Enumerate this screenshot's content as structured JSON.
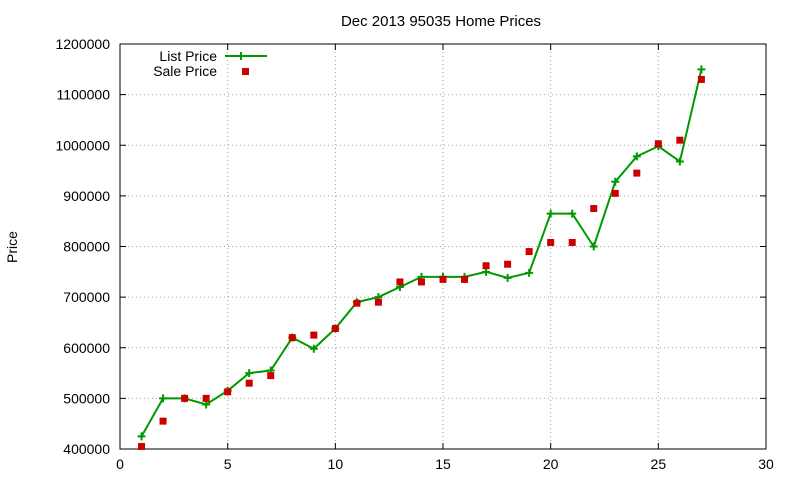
{
  "chart_data": {
    "type": "line",
    "title": "Dec 2013 95035 Home Prices",
    "xlabel": "",
    "ylabel": "Price",
    "xlim": [
      0,
      30
    ],
    "ylim": [
      400000,
      1200000
    ],
    "x_ticks": [
      0,
      5,
      10,
      15,
      20,
      25,
      30
    ],
    "x_tick_labels": [
      "0",
      "5",
      "10",
      "15",
      "20",
      "25",
      "30"
    ],
    "y_ticks": [
      400000,
      500000,
      600000,
      700000,
      800000,
      900000,
      1000000,
      1100000,
      1200000
    ],
    "y_tick_labels": [
      "400000",
      "500000",
      "600000",
      "700000",
      "800000",
      "900000",
      "1000000",
      "1100000",
      "1200000"
    ],
    "grid": true,
    "legend_position": "top-left",
    "series": [
      {
        "name": "List Price",
        "style": "linespoints",
        "marker": "plus",
        "color": "#009900",
        "x": [
          1,
          2,
          3,
          4,
          5,
          6,
          7,
          8,
          9,
          10,
          11,
          12,
          13,
          14,
          15,
          16,
          17,
          18,
          19,
          20,
          21,
          22,
          23,
          24,
          25,
          26,
          27
        ],
        "y": [
          425000,
          500000,
          500000,
          488000,
          515000,
          550000,
          555000,
          620000,
          598000,
          638000,
          690000,
          700000,
          720000,
          740000,
          740000,
          740000,
          750000,
          738000,
          748000,
          865000,
          865000,
          800000,
          928000,
          978000,
          998000,
          968000,
          1150000
        ]
      },
      {
        "name": "Sale Price",
        "style": "points",
        "marker": "square",
        "color": "#cc0000",
        "x": [
          1,
          2,
          3,
          4,
          5,
          6,
          7,
          8,
          9,
          10,
          11,
          12,
          13,
          14,
          15,
          16,
          17,
          18,
          19,
          20,
          21,
          22,
          23,
          24,
          25,
          26,
          27
        ],
        "y": [
          405000,
          455000,
          500000,
          500000,
          513000,
          530000,
          545000,
          620000,
          625000,
          638000,
          688000,
          690000,
          730000,
          730000,
          735000,
          735000,
          762000,
          765000,
          790000,
          808000,
          808000,
          875000,
          905000,
          945000,
          1003000,
          1010000,
          1130000
        ]
      }
    ]
  }
}
